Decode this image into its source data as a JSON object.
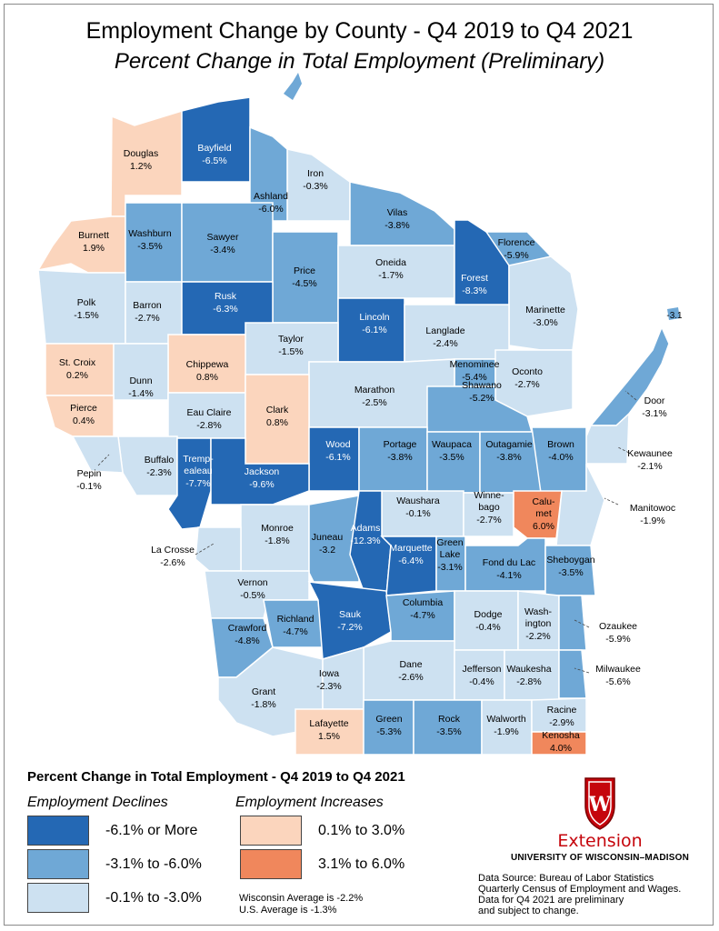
{
  "title": "Employment Change by County - Q4 2019 to Q4 2021",
  "subtitle": "Percent Change in Total Employment (Preliminary)",
  "colors": {
    "decline_high": "#2468b4",
    "decline_mid": "#6fa8d6",
    "decline_low": "#cde1f1",
    "increase_low": "#fbd5bd",
    "increase_high": "#f0875c",
    "border": "#ffffff",
    "label_dark": "#000000",
    "label_light": "#ffffff"
  },
  "counties": [
    {
      "name": "Douglas",
      "value": "1.2%",
      "class": "increase_low"
    },
    {
      "name": "Bayfield",
      "value": "-6.5%",
      "class": "decline_high"
    },
    {
      "name": "Iron",
      "value": "-0.3%",
      "class": "decline_low"
    },
    {
      "name": "Ashland",
      "value": "-6.0%",
      "class": "decline_mid"
    },
    {
      "name": "Vilas",
      "value": "-3.8%",
      "class": "decline_mid"
    },
    {
      "name": "Burnett",
      "value": "1.9%",
      "class": "increase_low"
    },
    {
      "name": "Washburn",
      "value": "-3.5%",
      "class": "decline_mid"
    },
    {
      "name": "Sawyer",
      "value": "-3.4%",
      "class": "decline_mid"
    },
    {
      "name": "Price",
      "value": "-4.5%",
      "class": "decline_mid"
    },
    {
      "name": "Oneida",
      "value": "-1.7%",
      "class": "decline_low"
    },
    {
      "name": "Forest",
      "value": "-8.3%",
      "class": "decline_high"
    },
    {
      "name": "Florence",
      "value": "-5.9%",
      "class": "decline_mid"
    },
    {
      "name": "Polk",
      "value": "-1.5%",
      "class": "decline_low"
    },
    {
      "name": "Barron",
      "value": "-2.7%",
      "class": "decline_low"
    },
    {
      "name": "Rusk",
      "value": "-6.3%",
      "class": "decline_high"
    },
    {
      "name": "Lincoln",
      "value": "-6.1%",
      "class": "decline_high"
    },
    {
      "name": "Marinette",
      "value": "-3.0%",
      "class": "decline_low"
    },
    {
      "name": "Taylor",
      "value": "-1.5%",
      "class": "decline_low"
    },
    {
      "name": "Langlade",
      "value": "-2.4%",
      "class": "decline_low"
    },
    {
      "name": "St. Croix",
      "value": "0.2%",
      "class": "increase_low"
    },
    {
      "name": "Chippewa",
      "value": "0.8%",
      "class": "increase_low"
    },
    {
      "name": "Dunn",
      "value": "-1.4%",
      "class": "decline_low"
    },
    {
      "name": "Menominee",
      "value": "-5.4%",
      "class": "decline_mid"
    },
    {
      "name": "Oconto",
      "value": "-2.7%",
      "class": "decline_low"
    },
    {
      "name": "Marathon",
      "value": "-2.5%",
      "class": "decline_low"
    },
    {
      "name": "Door",
      "value": "-3.1%",
      "class": "decline_mid"
    },
    {
      "name": "Pierce",
      "value": "0.4%",
      "class": "increase_low"
    },
    {
      "name": "Eau Claire",
      "value": "-2.8%",
      "class": "decline_low"
    },
    {
      "name": "Clark",
      "value": "0.8%",
      "class": "increase_low"
    },
    {
      "name": "Shawano",
      "value": "-5.2%",
      "class": "decline_mid"
    },
    {
      "name": "Kewaunee",
      "value": "-2.1%",
      "class": "decline_low"
    },
    {
      "name": "Wood",
      "value": "-6.1%",
      "class": "decline_high"
    },
    {
      "name": "Portage",
      "value": "-3.8%",
      "class": "decline_mid"
    },
    {
      "name": "Waupaca",
      "value": "-3.5%",
      "class": "decline_mid"
    },
    {
      "name": "Outagamie",
      "value": "-3.8%",
      "class": "decline_mid"
    },
    {
      "name": "Brown",
      "value": "-4.0%",
      "class": "decline_mid"
    },
    {
      "name": "Buffalo",
      "value": "-2.3%",
      "class": "decline_low"
    },
    {
      "name": "Pepin",
      "value": "-0.1%",
      "class": "decline_low"
    },
    {
      "name": "Trempealeau",
      "label": [
        "Tremp-",
        "ealeau"
      ],
      "value": "-7.7%",
      "class": "decline_high"
    },
    {
      "name": "Jackson",
      "value": "-9.6%",
      "class": "decline_high"
    },
    {
      "name": "Waushara",
      "value": "-0.1%",
      "class": "decline_low"
    },
    {
      "name": "Winnebago",
      "label": [
        "Winne-",
        "bago"
      ],
      "value": "-2.7%",
      "class": "decline_low"
    },
    {
      "name": "Calumet",
      "label": [
        "Calu-",
        "met"
      ],
      "value": "6.0%",
      "class": "increase_high"
    },
    {
      "name": "Manitowoc",
      "value": "-1.9%",
      "class": "decline_low"
    },
    {
      "name": "Monroe",
      "value": "-1.8%",
      "class": "decline_low"
    },
    {
      "name": "Juneau",
      "value": "-3.2",
      "class": "decline_mid"
    },
    {
      "name": "Adams",
      "value": "-12.3%",
      "class": "decline_high"
    },
    {
      "name": "Marquette",
      "value": "-6.4%",
      "class": "decline_high"
    },
    {
      "name": "Green Lake",
      "label": [
        "Green",
        "Lake"
      ],
      "value": "-3.1%",
      "class": "decline_mid"
    },
    {
      "name": "Fond du Lac",
      "value": "-4.1%",
      "class": "decline_mid"
    },
    {
      "name": "Sheboygan",
      "value": "-3.5%",
      "class": "decline_mid"
    },
    {
      "name": "La Crosse",
      "value": "-2.6%",
      "class": "decline_low"
    },
    {
      "name": "Vernon",
      "value": "-0.5%",
      "class": "decline_low"
    },
    {
      "name": "Richland",
      "value": "-4.7%",
      "class": "decline_mid"
    },
    {
      "name": "Sauk",
      "value": "-7.2%",
      "class": "decline_high"
    },
    {
      "name": "Columbia",
      "value": "-4.7%",
      "class": "decline_mid"
    },
    {
      "name": "Dodge",
      "value": "-0.4%",
      "class": "decline_low"
    },
    {
      "name": "Washington",
      "label": [
        "Wash-",
        "ington"
      ],
      "value": "-2.2%",
      "class": "decline_low"
    },
    {
      "name": "Ozaukee",
      "value": "-5.9%",
      "class": "decline_mid"
    },
    {
      "name": "Crawford",
      "value": "-4.8%",
      "class": "decline_mid"
    },
    {
      "name": "Dane",
      "value": "-2.6%",
      "class": "decline_low"
    },
    {
      "name": "Jefferson",
      "value": "-0.4%",
      "class": "decline_low"
    },
    {
      "name": "Waukesha",
      "value": "-2.8%",
      "class": "decline_low"
    },
    {
      "name": "Milwaukee",
      "value": "-5.6%",
      "class": "decline_mid"
    },
    {
      "name": "Grant",
      "value": "-1.8%",
      "class": "decline_low"
    },
    {
      "name": "Iowa",
      "value": "-2.3%",
      "class": "decline_low"
    },
    {
      "name": "Lafayette",
      "value": "1.5%",
      "class": "increase_low"
    },
    {
      "name": "Green",
      "value": "-5.3%",
      "class": "decline_mid"
    },
    {
      "name": "Rock",
      "value": "-3.5%",
      "class": "decline_mid"
    },
    {
      "name": "Walworth",
      "value": "-1.9%",
      "class": "decline_low"
    },
    {
      "name": "Racine",
      "value": "-2.9%",
      "class": "decline_low"
    },
    {
      "name": "Kenosha",
      "value": "4.0%",
      "class": "increase_high"
    }
  ],
  "door_island_label": "-3.1",
  "legend": {
    "title": "Percent Change in Total Employment - Q4 2019 to Q4 2021",
    "declines_heading": "Employment Declines",
    "increases_heading": "Employment Increases",
    "declines": [
      {
        "label": "-6.1% or More",
        "class": "decline_high"
      },
      {
        "label": "-3.1% to -6.0%",
        "class": "decline_mid"
      },
      {
        "label": "-0.1% to -3.0%",
        "class": "decline_low"
      }
    ],
    "increases": [
      {
        "label": "0.1% to 3.0%",
        "class": "increase_low"
      },
      {
        "label": "3.1% to 6.0%",
        "class": "increase_high"
      }
    ]
  },
  "averages": {
    "wisconsin": "Wisconsin Average is -2.2%",
    "us": "U.S. Average is -1.3%"
  },
  "source": [
    "Data Source: Bureau of Labor Statistics",
    "Quarterly Census of Employment and Wages.",
    "Data for Q4 2021 are preliminary",
    "and subject to change."
  ],
  "logo": {
    "word": "Extension",
    "university": "UNIVERSITY OF WISCONSIN–MADISON",
    "crest_letter": "W"
  }
}
